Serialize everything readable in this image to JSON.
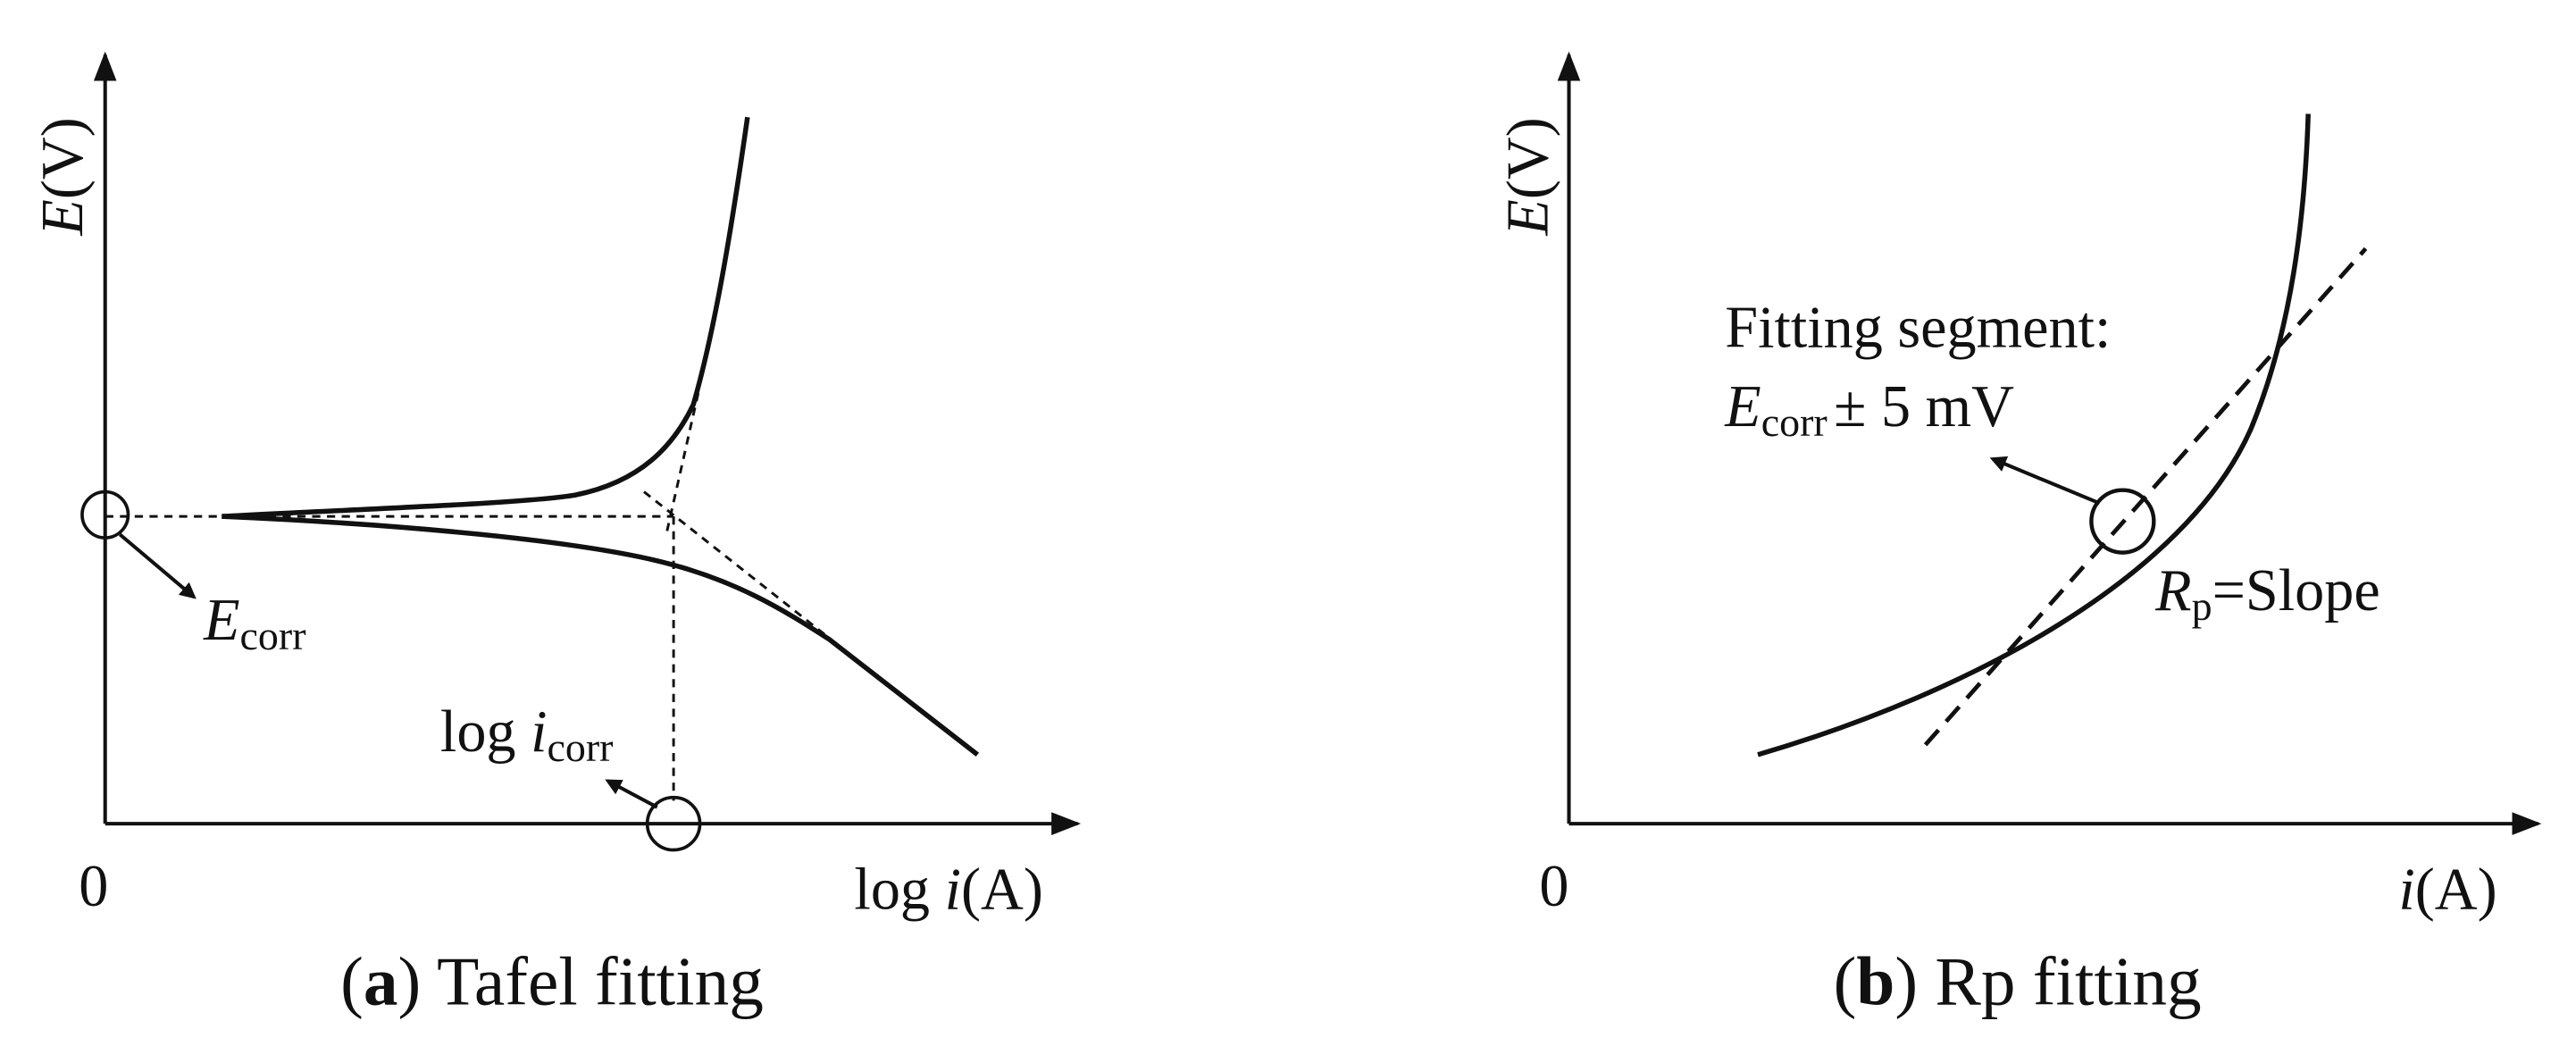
{
  "panels": [
    {
      "y_axis_label": {
        "symbol": "E",
        "unit": "(V)"
      },
      "origin": "0",
      "x_axis_label": {
        "prefix": "log ",
        "symbol": "i",
        "unit": "(A)"
      },
      "corrosion_potential": {
        "symbol": "E",
        "subscript": "corr"
      },
      "corrosion_current": {
        "prefix": "log ",
        "symbol": "i",
        "subscript": "corr"
      },
      "caption": {
        "open": "(",
        "letter": "a",
        "rest": ") Tafel fitting"
      }
    },
    {
      "y_axis_label": {
        "symbol": "E",
        "unit": "(V)"
      },
      "origin": "0",
      "x_axis_label": {
        "symbol": "i",
        "unit": "(A)"
      },
      "fitting_segment": {
        "line1": "Fitting segment:",
        "symbol": "E",
        "subscript": "corr",
        "rest": "± 5 mV"
      },
      "slope_label": {
        "symbol": "R",
        "subscript": "p",
        "rest": "=Slope"
      },
      "caption": {
        "open": "(",
        "letter": "b",
        "rest": ") Rp fitting"
      }
    }
  ]
}
